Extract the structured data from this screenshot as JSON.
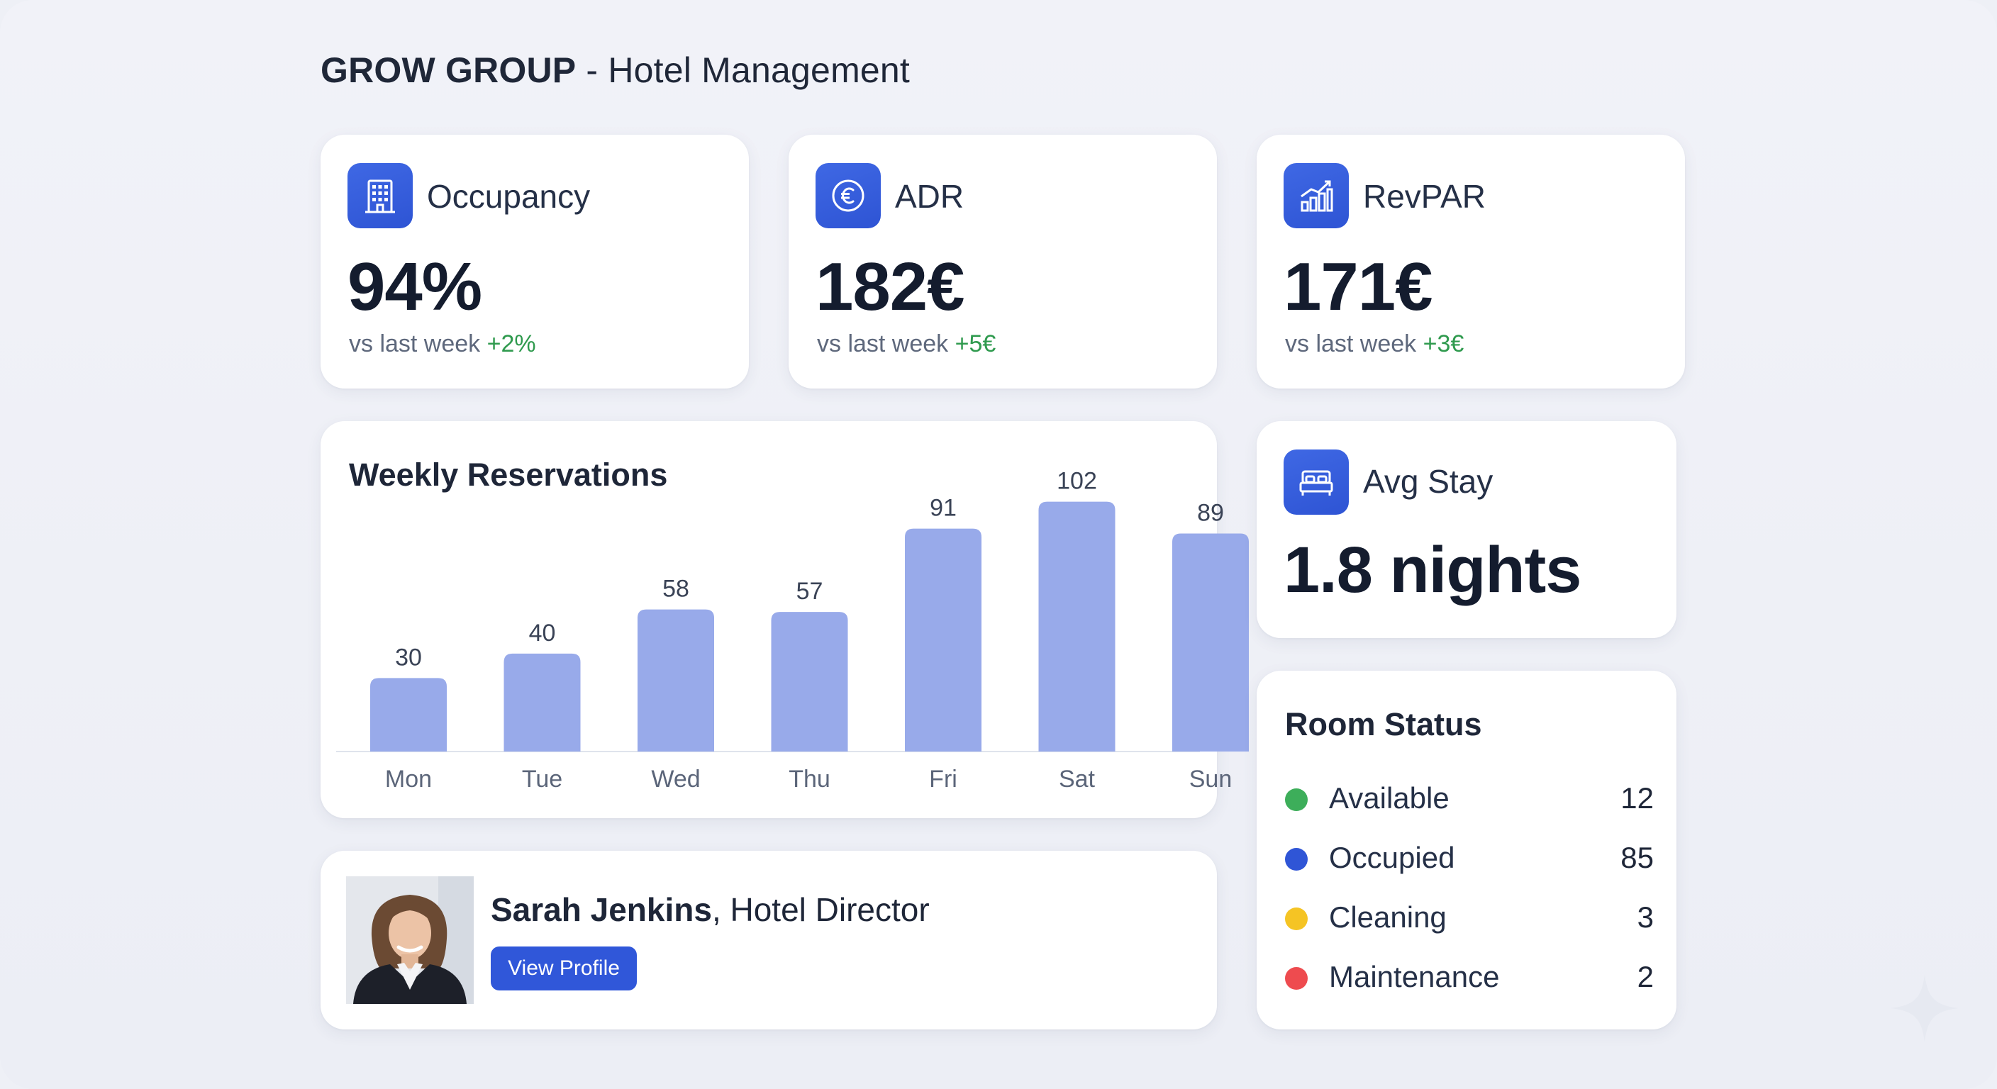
{
  "header": {
    "brand": "GROW GROUP",
    "subtitle": " - Hotel Management"
  },
  "kpis": {
    "occupancy": {
      "label": "Occupancy",
      "value": "94%",
      "compare": "vs last week",
      "delta": "+2%",
      "icon": "building-icon"
    },
    "adr": {
      "label": "ADR",
      "value": "182€",
      "compare": "vs last week",
      "delta": "+5€",
      "icon": "euro-icon"
    },
    "revpar": {
      "label": "RevPAR",
      "value": "171€",
      "compare": "vs last week",
      "delta": "+3€",
      "icon": "trend-chart-icon"
    },
    "avg_stay": {
      "label": "Avg Stay",
      "value": "1.8 nights",
      "icon": "bed-icon"
    }
  },
  "weekly": {
    "title": "Weekly Reservations"
  },
  "chart_data": {
    "type": "bar",
    "categories": [
      "Mon",
      "Tue",
      "Wed",
      "Thu",
      "Fri",
      "Sat",
      "Sun"
    ],
    "values": [
      30,
      40,
      58,
      57,
      91,
      102,
      89
    ],
    "data_labels": [
      "30",
      "40",
      "58",
      "57",
      "91",
      "102",
      "89"
    ],
    "title": "Weekly Reservations",
    "xlabel": "",
    "ylabel": "",
    "ylim": [
      0,
      110
    ],
    "grid": false,
    "bar_color": "#98aaea"
  },
  "room_status": {
    "title": "Room Status",
    "items": [
      {
        "label": "Available",
        "count": "12",
        "color": "#3dae5a"
      },
      {
        "label": "Occupied",
        "count": "85",
        "color": "#2f55d6"
      },
      {
        "label": "Cleaning",
        "count": "3",
        "color": "#f5c424"
      },
      {
        "label": "Maintenance",
        "count": "2",
        "color": "#ee4b4f"
      }
    ]
  },
  "profile": {
    "name": "Sarah Jenkins",
    "role": ", Hotel Director",
    "button": "View Profile"
  },
  "colors": {
    "accent": "#3057d9",
    "positive": "#2f9a4e",
    "background": "#eef0f6"
  }
}
